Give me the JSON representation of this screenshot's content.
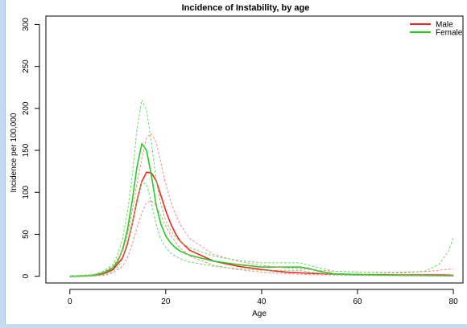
{
  "chart_data": {
    "type": "line",
    "title": "Incidence of Instability, by age",
    "xlabel": "Age",
    "ylabel": "Incidence per 100,000",
    "xlim": [
      -5,
      82
    ],
    "ylim": [
      -8,
      310
    ],
    "xticks": [
      0,
      20,
      40,
      60,
      80
    ],
    "yticks": [
      0,
      50,
      100,
      150,
      200,
      250,
      300
    ],
    "grid": false,
    "legend_position": "top-right",
    "series": [
      {
        "name": "Male",
        "color": "#ff2020",
        "style": "solid",
        "width": 1.6,
        "points": [
          [
            0,
            0
          ],
          [
            3,
            0.5
          ],
          [
            5,
            1
          ],
          [
            7,
            3
          ],
          [
            9,
            8
          ],
          [
            11,
            22
          ],
          [
            12,
            38
          ],
          [
            13,
            62
          ],
          [
            14,
            90
          ],
          [
            15,
            113
          ],
          [
            16,
            124
          ],
          [
            17,
            123
          ],
          [
            18,
            114
          ],
          [
            19,
            96
          ],
          [
            20,
            78
          ],
          [
            21,
            63
          ],
          [
            22,
            51
          ],
          [
            23,
            42
          ],
          [
            25,
            31
          ],
          [
            30,
            18
          ],
          [
            35,
            12
          ],
          [
            40,
            8
          ],
          [
            45,
            5
          ],
          [
            50,
            3.5
          ],
          [
            55,
            2.5
          ],
          [
            60,
            2
          ],
          [
            70,
            1.5
          ],
          [
            78,
            1.5
          ],
          [
            80,
            1
          ]
        ]
      },
      {
        "name": "Female",
        "color": "#22cc22",
        "style": "solid",
        "width": 1.6,
        "points": [
          [
            0,
            0
          ],
          [
            3,
            0.5
          ],
          [
            5,
            1.5
          ],
          [
            7,
            4
          ],
          [
            9,
            10
          ],
          [
            10,
            18
          ],
          [
            11,
            32
          ],
          [
            12,
            55
          ],
          [
            13,
            90
          ],
          [
            14,
            130
          ],
          [
            15,
            158
          ],
          [
            16,
            150
          ],
          [
            17,
            120
          ],
          [
            18,
            85
          ],
          [
            19,
            62
          ],
          [
            20,
            48
          ],
          [
            21,
            40
          ],
          [
            22,
            34
          ],
          [
            23,
            30
          ],
          [
            25,
            25
          ],
          [
            30,
            18
          ],
          [
            35,
            14
          ],
          [
            40,
            11
          ],
          [
            45,
            11
          ],
          [
            48,
            11
          ],
          [
            50,
            9
          ],
          [
            52,
            6
          ],
          [
            55,
            3
          ],
          [
            60,
            2
          ],
          [
            70,
            1
          ],
          [
            80,
            0.5
          ]
        ]
      },
      {
        "name": "",
        "color": "#ff8888",
        "style": "dashed",
        "width": 1,
        "points": [
          [
            0,
            0
          ],
          [
            5,
            1.5
          ],
          [
            7,
            5
          ],
          [
            9,
            12
          ],
          [
            11,
            30
          ],
          [
            12,
            48
          ],
          [
            13,
            78
          ],
          [
            14,
            110
          ],
          [
            15,
            140
          ],
          [
            16,
            165
          ],
          [
            17,
            170
          ],
          [
            18,
            160
          ],
          [
            19,
            135
          ],
          [
            20,
            110
          ],
          [
            21,
            90
          ],
          [
            22,
            74
          ],
          [
            23,
            62
          ],
          [
            25,
            45
          ],
          [
            30,
            26
          ],
          [
            35,
            18
          ],
          [
            40,
            13
          ],
          [
            45,
            10
          ],
          [
            50,
            8
          ],
          [
            55,
            6
          ],
          [
            60,
            5
          ],
          [
            65,
            4.5
          ],
          [
            70,
            5
          ],
          [
            75,
            6
          ],
          [
            80,
            9
          ]
        ]
      },
      {
        "name": "",
        "color": "#ff8888",
        "style": "dashed",
        "width": 1,
        "points": [
          [
            0,
            -1
          ],
          [
            5,
            0
          ],
          [
            7,
            1
          ],
          [
            9,
            4
          ],
          [
            11,
            12
          ],
          [
            12,
            22
          ],
          [
            13,
            38
          ],
          [
            14,
            58
          ],
          [
            15,
            75
          ],
          [
            16,
            88
          ],
          [
            17,
            90
          ],
          [
            18,
            84
          ],
          [
            19,
            72
          ],
          [
            20,
            60
          ],
          [
            21,
            49
          ],
          [
            22,
            41
          ],
          [
            23,
            34
          ],
          [
            25,
            24
          ],
          [
            30,
            13
          ],
          [
            35,
            8
          ],
          [
            40,
            5
          ],
          [
            45,
            3
          ],
          [
            50,
            2
          ],
          [
            55,
            1.5
          ],
          [
            60,
            1
          ],
          [
            70,
            0.8
          ],
          [
            80,
            0.5
          ]
        ]
      },
      {
        "name": "",
        "color": "#66dd66",
        "style": "dashed",
        "width": 1,
        "points": [
          [
            0,
            0
          ],
          [
            5,
            2
          ],
          [
            7,
            6
          ],
          [
            9,
            14
          ],
          [
            10,
            26
          ],
          [
            11,
            45
          ],
          [
            12,
            75
          ],
          [
            13,
            120
          ],
          [
            14,
            175
          ],
          [
            15,
            210
          ],
          [
            16,
            198
          ],
          [
            17,
            160
          ],
          [
            18,
            115
          ],
          [
            19,
            85
          ],
          [
            20,
            66
          ],
          [
            21,
            55
          ],
          [
            22,
            47
          ],
          [
            23,
            41
          ],
          [
            25,
            34
          ],
          [
            30,
            24
          ],
          [
            35,
            19
          ],
          [
            40,
            16
          ],
          [
            45,
            16
          ],
          [
            48,
            16
          ],
          [
            50,
            13
          ],
          [
            53,
            9
          ],
          [
            55,
            6
          ],
          [
            60,
            5
          ],
          [
            65,
            4
          ],
          [
            70,
            4
          ],
          [
            74,
            6
          ],
          [
            77,
            14
          ],
          [
            79,
            30
          ],
          [
            80,
            46
          ]
        ]
      },
      {
        "name": "",
        "color": "#66dd66",
        "style": "dashed",
        "width": 1,
        "points": [
          [
            0,
            -1
          ],
          [
            5,
            0.5
          ],
          [
            7,
            2
          ],
          [
            9,
            6
          ],
          [
            10,
            11
          ],
          [
            11,
            20
          ],
          [
            12,
            36
          ],
          [
            13,
            62
          ],
          [
            14,
            92
          ],
          [
            15,
            112
          ],
          [
            16,
            110
          ],
          [
            17,
            88
          ],
          [
            18,
            62
          ],
          [
            19,
            44
          ],
          [
            20,
            34
          ],
          [
            21,
            28
          ],
          [
            22,
            24
          ],
          [
            23,
            21
          ],
          [
            25,
            17
          ],
          [
            30,
            12
          ],
          [
            35,
            9
          ],
          [
            40,
            7
          ],
          [
            45,
            7
          ],
          [
            48,
            7
          ],
          [
            50,
            5
          ],
          [
            55,
            2
          ],
          [
            60,
            1
          ],
          [
            70,
            0.5
          ],
          [
            80,
            0
          ]
        ]
      }
    ]
  }
}
